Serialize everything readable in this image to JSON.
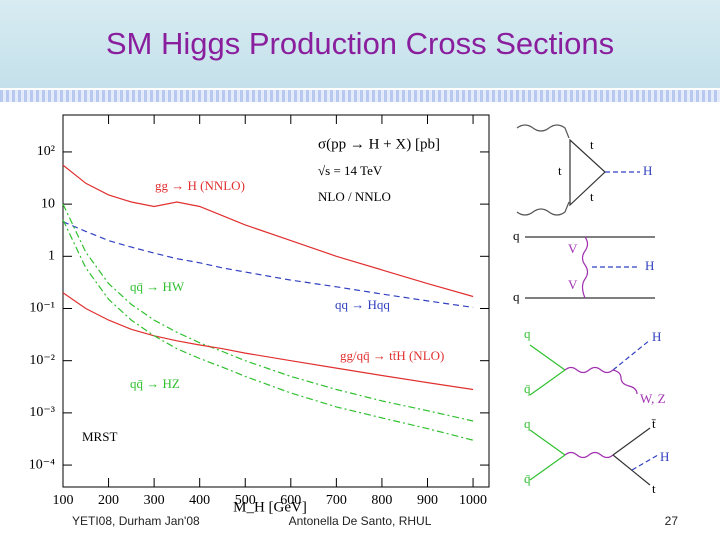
{
  "slide_title": "SM Higgs Production Cross Sections",
  "footer": {
    "left": "YETI08, Durham Jan'08",
    "center": "Antonella De Santo, RHUL",
    "page": "27"
  },
  "chart_data": {
    "type": "line",
    "annotations": [
      "σ(pp → H + X) [pb]",
      "√s = 14 TeV",
      "NLO / NNLO",
      "MRST"
    ],
    "x_label": "M_H [GeV]",
    "x": [
      100,
      150,
      200,
      250,
      300,
      350,
      400,
      450,
      500,
      600,
      700,
      800,
      900,
      1000
    ],
    "series": [
      {
        "name": "gg → H (NNLO)",
        "color": "#e03030",
        "dash": "solid",
        "values": [
          56,
          25,
          15,
          11,
          9,
          11,
          9,
          6,
          4,
          2,
          1.0,
          0.55,
          0.3,
          0.17
        ]
      },
      {
        "name": "qq → Hqq",
        "color": "#3040c0",
        "dash": "dashed",
        "values": [
          4.6,
          3,
          2,
          1.5,
          1.15,
          0.9,
          0.75,
          0.6,
          0.5,
          0.35,
          0.26,
          0.19,
          0.14,
          0.105
        ]
      },
      {
        "name": "qq̄ → HW",
        "color": "#30c030",
        "dash": "dashdot",
        "values": [
          10,
          1.2,
          0.3,
          0.12,
          0.06,
          0.035,
          0.022,
          0.015,
          0.01,
          0.005,
          0.0028,
          0.0017,
          0.0011,
          0.0007
        ]
      },
      {
        "name": "gg/qq̄ → tt̄H (NLO)",
        "color": "#e03030",
        "dash": "solid",
        "values": [
          0.2,
          0.1,
          0.06,
          0.04,
          0.03,
          0.024,
          0.02,
          0.017,
          0.014,
          0.01,
          0.0072,
          0.0052,
          0.0038,
          0.0028
        ]
      },
      {
        "name": "qq̄ → HZ",
        "color": "#30c030",
        "dash": "dashdot",
        "values": [
          5,
          0.6,
          0.15,
          0.06,
          0.03,
          0.017,
          0.011,
          0.0075,
          0.005,
          0.0024,
          0.0013,
          0.0008,
          0.0005,
          0.0003
        ]
      }
    ],
    "xlim": [
      100,
      1035
    ],
    "xticks": [
      100,
      200,
      300,
      400,
      500,
      600,
      700,
      800,
      900,
      1000
    ],
    "ylim": [
      3.8e-05,
      510
    ],
    "log_y": true,
    "yticks": [
      {
        "value": 0.0001,
        "label": "10⁻⁴"
      },
      {
        "value": 0.001,
        "label": "10⁻³"
      },
      {
        "value": 0.01,
        "label": "10⁻²"
      },
      {
        "value": 0.1,
        "label": "10⁻¹"
      },
      1,
      10,
      {
        "value": 100,
        "label": "10²"
      }
    ]
  },
  "diagrams": {
    "gg_fusion": [
      "t",
      "t",
      "t",
      "H"
    ],
    "vbf": [
      "q",
      "V",
      "V",
      "H",
      "q"
    ],
    "vh": [
      "q",
      "q̄",
      "H",
      "W, Z"
    ],
    "tth": [
      "q",
      "q̄",
      "t̄",
      "H",
      "t"
    ]
  }
}
